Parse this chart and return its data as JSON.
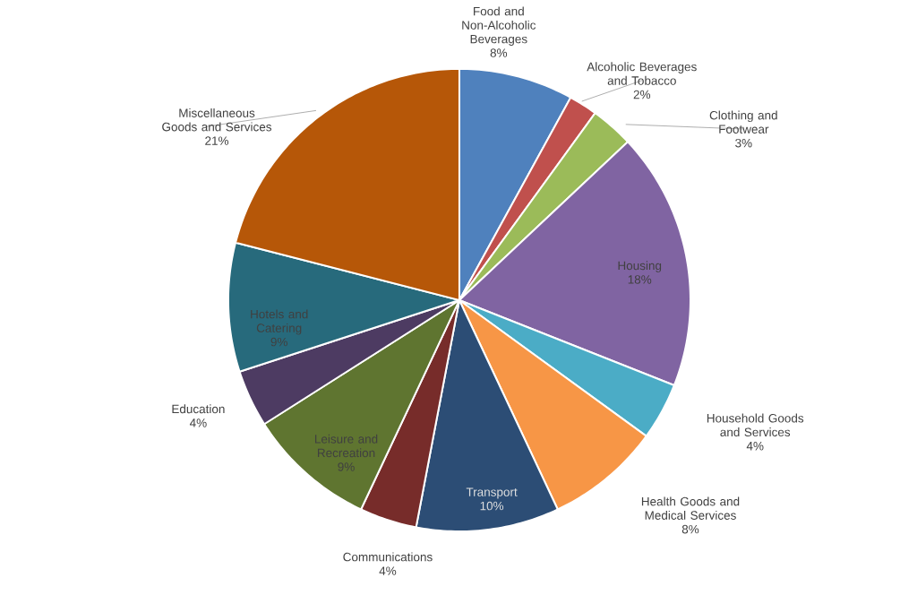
{
  "chart_data": {
    "type": "pie",
    "categories": [
      "Food and Non-Alcoholic Beverages",
      "Alcoholic Beverages and Tobacco",
      "Clothing and Footwear",
      "Housing",
      "Household Goods and Services",
      "Health Goods and Medical Services",
      "Transport",
      "Communications",
      "Leisure and Recreation",
      "Education",
      "Hotels and Catering",
      "Miscellaneous Goods and Services"
    ],
    "values": [
      8,
      2,
      3,
      18,
      4,
      8,
      10,
      4,
      9,
      4,
      9,
      21
    ],
    "value_labels": [
      "8%",
      "2%",
      "3%",
      "18%",
      "4%",
      "8%",
      "10%",
      "4%",
      "9%",
      "4%",
      "9%",
      "21%"
    ],
    "colors": [
      "#4f81bd",
      "#c0504d",
      "#9bbb59",
      "#8064a2",
      "#4bacc6",
      "#f79646",
      "#2c4d75",
      "#772c2a",
      "#5f7530",
      "#4d3b62",
      "#276a7c",
      "#b65708"
    ]
  }
}
